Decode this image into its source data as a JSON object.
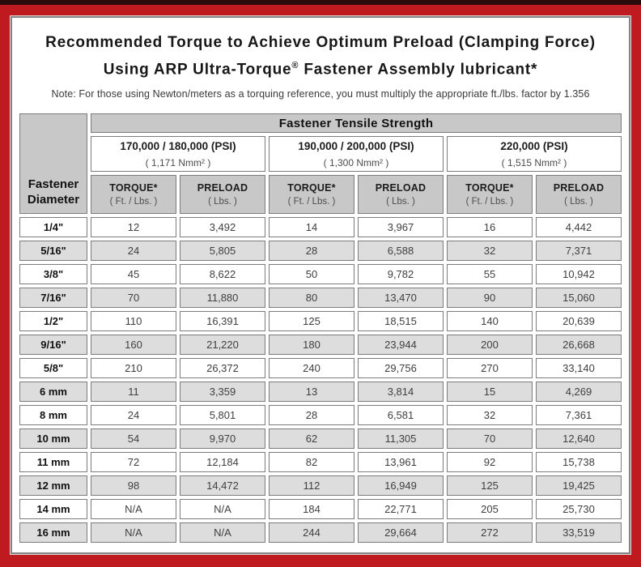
{
  "colors": {
    "frame_red": "#bf1a20",
    "top_strip": "#2a0a0b",
    "header_gray": "#c8c8c8",
    "alt_row_gray": "#dddddd",
    "cell_border": "#7c7c7c"
  },
  "title": {
    "line1": "Recommended Torque to Achieve Optimum Preload (Clamping Force)",
    "line2_pre": "Using ARP Ultra-Torque",
    "registered_mark": "®",
    "line2_post": " Fastener Assembly lubricant*",
    "note": "Note: For those using Newton/meters as a torquing reference, you must multiply the appropriate ft./lbs. factor by 1.356"
  },
  "table": {
    "corner_header": "Fastener Diameter",
    "tensile_header": "Fastener Tensile Strength",
    "strength_groups": [
      {
        "psi": "170,000 / 180,000 (PSI)",
        "nmm": "( 1,171 Nmm² )"
      },
      {
        "psi": "190,000 / 200,000 (PSI)",
        "nmm": "( 1,300 Nmm² )"
      },
      {
        "psi": "220,000 (PSI)",
        "nmm": "( 1,515 Nmm² )"
      }
    ],
    "col_headers": {
      "torque_label": "TORQUE*",
      "torque_sub": "( Ft. / Lbs. )",
      "preload_label": "PRELOAD",
      "preload_sub": "( Lbs. )"
    },
    "rows": [
      {
        "diameter": "1/4\"",
        "values": [
          "12",
          "3,492",
          "14",
          "3,967",
          "16",
          "4,442"
        ]
      },
      {
        "diameter": "5/16\"",
        "values": [
          "24",
          "5,805",
          "28",
          "6,588",
          "32",
          "7,371"
        ]
      },
      {
        "diameter": "3/8\"",
        "values": [
          "45",
          "8,622",
          "50",
          "9,782",
          "55",
          "10,942"
        ]
      },
      {
        "diameter": "7/16\"",
        "values": [
          "70",
          "11,880",
          "80",
          "13,470",
          "90",
          "15,060"
        ]
      },
      {
        "diameter": "1/2\"",
        "values": [
          "110",
          "16,391",
          "125",
          "18,515",
          "140",
          "20,639"
        ]
      },
      {
        "diameter": "9/16\"",
        "values": [
          "160",
          "21,220",
          "180",
          "23,944",
          "200",
          "26,668"
        ]
      },
      {
        "diameter": "5/8\"",
        "values": [
          "210",
          "26,372",
          "240",
          "29,756",
          "270",
          "33,140"
        ]
      },
      {
        "diameter": "6 mm",
        "values": [
          "11",
          "3,359",
          "13",
          "3,814",
          "15",
          "4,269"
        ]
      },
      {
        "diameter": "8 mm",
        "values": [
          "24",
          "5,801",
          "28",
          "6,581",
          "32",
          "7,361"
        ]
      },
      {
        "diameter": "10 mm",
        "values": [
          "54",
          "9,970",
          "62",
          "11,305",
          "70",
          "12,640"
        ]
      },
      {
        "diameter": "11 mm",
        "values": [
          "72",
          "12,184",
          "82",
          "13,961",
          "92",
          "15,738"
        ]
      },
      {
        "diameter": "12 mm",
        "values": [
          "98",
          "14,472",
          "112",
          "16,949",
          "125",
          "19,425"
        ]
      },
      {
        "diameter": "14 mm",
        "values": [
          "N/A",
          "N/A",
          "184",
          "22,771",
          "205",
          "25,730"
        ]
      },
      {
        "diameter": "16 mm",
        "values": [
          "N/A",
          "N/A",
          "244",
          "29,664",
          "272",
          "33,519"
        ]
      }
    ]
  }
}
